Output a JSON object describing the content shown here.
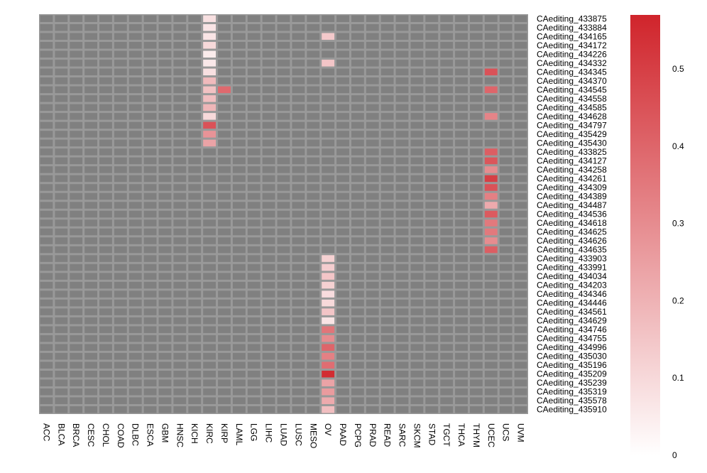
{
  "chart_data": {
    "type": "heatmap",
    "title": "",
    "columns": [
      "ACC",
      "BLCA",
      "BRCA",
      "CESC",
      "CHOL",
      "COAD",
      "DLBC",
      "ESCA",
      "GBM",
      "HNSC",
      "KICH",
      "KIRC",
      "KIRP",
      "LAML",
      "LGG",
      "LIHC",
      "LUAD",
      "LUSC",
      "MESO",
      "OV",
      "PAAD",
      "PCPG",
      "PRAD",
      "READ",
      "SARC",
      "SKCM",
      "STAD",
      "TGCT",
      "THCA",
      "THYM",
      "UCEC",
      "UCS",
      "UVM"
    ],
    "rows": [
      "CAediting_433875",
      "CAediting_433884",
      "CAediting_434165",
      "CAediting_434172",
      "CAediting_434226",
      "CAediting_434332",
      "CAediting_434345",
      "CAediting_434370",
      "CAediting_434545",
      "CAediting_434558",
      "CAediting_434585",
      "CAediting_434628",
      "CAediting_434797",
      "CAediting_435429",
      "CAediting_435430",
      "CAediting_433825",
      "CAediting_434127",
      "CAediting_434258",
      "CAediting_434261",
      "CAediting_434309",
      "CAediting_434389",
      "CAediting_434487",
      "CAediting_434536",
      "CAediting_434618",
      "CAediting_434625",
      "CAediting_434626",
      "CAediting_434635",
      "CAediting_433903",
      "CAediting_433991",
      "CAediting_434034",
      "CAediting_434203",
      "CAediting_434346",
      "CAediting_434446",
      "CAediting_434561",
      "CAediting_434629",
      "CAediting_434746",
      "CAediting_434755",
      "CAediting_434996",
      "CAediting_435030",
      "CAediting_435196",
      "CAediting_435209",
      "CAediting_435239",
      "CAediting_435319",
      "CAediting_435578",
      "CAediting_435910"
    ],
    "missing_color": "#808080",
    "border_color": "#999999",
    "colorscale": [
      "#ffffff",
      "#d0242b"
    ],
    "colorbar": {
      "range": [
        0,
        0.57
      ],
      "ticks": [
        0,
        0.1,
        0.2,
        0.3,
        0.4,
        0.5
      ],
      "tick_labels": [
        "0",
        "0.1",
        "0.2",
        "0.3",
        "0.4",
        "0.5"
      ]
    },
    "cells": [
      {
        "row": "CAediting_433875",
        "col": "KIRC",
        "value": 0.08
      },
      {
        "row": "CAediting_433884",
        "col": "KIRC",
        "value": 0.07
      },
      {
        "row": "CAediting_434165",
        "col": "KIRC",
        "value": 0.07
      },
      {
        "row": "CAediting_434165",
        "col": "OV",
        "value": 0.14
      },
      {
        "row": "CAediting_434172",
        "col": "KIRC",
        "value": 0.1
      },
      {
        "row": "CAediting_434226",
        "col": "KIRC",
        "value": 0.05
      },
      {
        "row": "CAediting_434332",
        "col": "KIRC",
        "value": 0.06
      },
      {
        "row": "CAediting_434332",
        "col": "OV",
        "value": 0.15
      },
      {
        "row": "CAediting_434345",
        "col": "KIRC",
        "value": 0.08
      },
      {
        "row": "CAediting_434345",
        "col": "UCEC",
        "value": 0.45
      },
      {
        "row": "CAediting_434370",
        "col": "KIRC",
        "value": 0.18
      },
      {
        "row": "CAediting_434545",
        "col": "KIRC",
        "value": 0.16
      },
      {
        "row": "CAediting_434545",
        "col": "KIRP",
        "value": 0.39
      },
      {
        "row": "CAediting_434545",
        "col": "UCEC",
        "value": 0.4
      },
      {
        "row": "CAediting_434558",
        "col": "KIRC",
        "value": 0.17
      },
      {
        "row": "CAediting_434585",
        "col": "KIRC",
        "value": 0.19
      },
      {
        "row": "CAediting_434628",
        "col": "KIRC",
        "value": 0.1
      },
      {
        "row": "CAediting_434628",
        "col": "UCEC",
        "value": 0.32
      },
      {
        "row": "CAediting_434797",
        "col": "KIRC",
        "value": 0.45
      },
      {
        "row": "CAediting_435429",
        "col": "KIRC",
        "value": 0.28
      },
      {
        "row": "CAediting_435430",
        "col": "KIRC",
        "value": 0.24
      },
      {
        "row": "CAediting_433825",
        "col": "UCEC",
        "value": 0.42
      },
      {
        "row": "CAediting_434127",
        "col": "UCEC",
        "value": 0.44
      },
      {
        "row": "CAediting_434258",
        "col": "UCEC",
        "value": 0.3
      },
      {
        "row": "CAediting_434261",
        "col": "UCEC",
        "value": 0.5
      },
      {
        "row": "CAediting_434309",
        "col": "UCEC",
        "value": 0.45
      },
      {
        "row": "CAediting_434389",
        "col": "UCEC",
        "value": 0.33
      },
      {
        "row": "CAediting_434487",
        "col": "UCEC",
        "value": 0.22
      },
      {
        "row": "CAediting_434536",
        "col": "UCEC",
        "value": 0.43
      },
      {
        "row": "CAediting_434618",
        "col": "UCEC",
        "value": 0.35
      },
      {
        "row": "CAediting_434625",
        "col": "UCEC",
        "value": 0.35
      },
      {
        "row": "CAediting_434626",
        "col": "UCEC",
        "value": 0.3
      },
      {
        "row": "CAediting_434635",
        "col": "UCEC",
        "value": 0.42
      },
      {
        "row": "CAediting_433903",
        "col": "OV",
        "value": 0.12
      },
      {
        "row": "CAediting_433991",
        "col": "OV",
        "value": 0.13
      },
      {
        "row": "CAediting_434034",
        "col": "OV",
        "value": 0.15
      },
      {
        "row": "CAediting_434203",
        "col": "OV",
        "value": 0.12
      },
      {
        "row": "CAediting_434346",
        "col": "OV",
        "value": 0.09
      },
      {
        "row": "CAediting_434446",
        "col": "OV",
        "value": 0.1
      },
      {
        "row": "CAediting_434561",
        "col": "OV",
        "value": 0.15
      },
      {
        "row": "CAediting_434629",
        "col": "OV",
        "value": 0.07
      },
      {
        "row": "CAediting_434746",
        "col": "OV",
        "value": 0.36
      },
      {
        "row": "CAediting_434755",
        "col": "OV",
        "value": 0.3
      },
      {
        "row": "CAediting_434996",
        "col": "OV",
        "value": 0.4
      },
      {
        "row": "CAediting_435030",
        "col": "OV",
        "value": 0.33
      },
      {
        "row": "CAediting_435196",
        "col": "OV",
        "value": 0.38
      },
      {
        "row": "CAediting_435209",
        "col": "OV",
        "value": 0.55
      },
      {
        "row": "CAediting_435239",
        "col": "OV",
        "value": 0.24
      },
      {
        "row": "CAediting_435319",
        "col": "OV",
        "value": 0.26
      },
      {
        "row": "CAediting_435578",
        "col": "OV",
        "value": 0.22
      },
      {
        "row": "CAediting_435910",
        "col": "OV",
        "value": 0.17
      }
    ]
  }
}
